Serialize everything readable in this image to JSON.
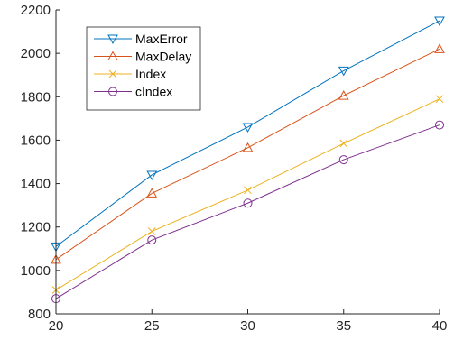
{
  "chart_data": {
    "type": "line",
    "title": "",
    "xlabel": "",
    "ylabel": "",
    "x": [
      20,
      25,
      30,
      35,
      40
    ],
    "xlim": [
      20,
      40
    ],
    "ylim": [
      800,
      2200
    ],
    "xticks": [
      20,
      25,
      30,
      35,
      40
    ],
    "yticks": [
      800,
      1000,
      1200,
      1400,
      1600,
      1800,
      2000,
      2200
    ],
    "grid": false,
    "legend_position": "top-left",
    "series": [
      {
        "name": "MaxError",
        "color": "#0072BD",
        "marker": "triangle-down",
        "values": [
          1110,
          1440,
          1660,
          1920,
          2150
        ]
      },
      {
        "name": "MaxDelay",
        "color": "#D95319",
        "marker": "triangle-up",
        "values": [
          1050,
          1355,
          1565,
          1805,
          2020
        ]
      },
      {
        "name": "Index",
        "color": "#EDB120",
        "marker": "x",
        "values": [
          910,
          1180,
          1370,
          1585,
          1790
        ]
      },
      {
        "name": "cIndex",
        "color": "#7E2F8E",
        "marker": "circle",
        "values": [
          870,
          1140,
          1310,
          1510,
          1670
        ]
      }
    ]
  }
}
